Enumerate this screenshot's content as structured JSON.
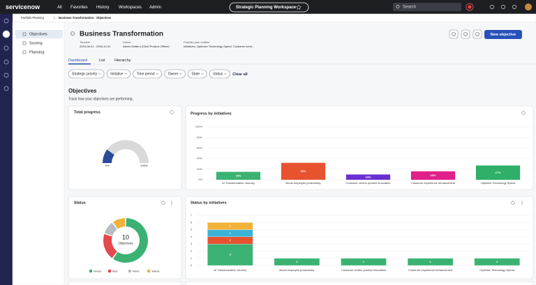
{
  "top_nav": {
    "logo": "servicenow",
    "menu": [
      "All",
      "Favorites",
      "History",
      "Workspaces",
      "Admin"
    ],
    "workspace": "Strategic Planning Workspace",
    "search": "Search"
  },
  "breadcrumb": [
    "Portfolio Planning",
    "Business Transformation - Objectives"
  ],
  "side_nav": [
    "Objectives",
    "Scoring",
    "Planning"
  ],
  "header": {
    "title": "Business Transformation",
    "fields": [
      {
        "label": "Timeline",
        "value": "2024-06-01 - 2026-12-31"
      },
      {
        "label": "Owner",
        "value": "Aileen Mottern (Chief Product Officer)"
      },
      {
        "label": "Portfolio plan entities",
        "value": "Initiatives: Optimize Technology Spend, Customer centr..."
      }
    ],
    "button": "New objective"
  },
  "tabs": [
    "Dashboard",
    "List",
    "Hierarchy"
  ],
  "filters": [
    "Strategic priority",
    "Initiative",
    "Time period",
    "Owner",
    "State",
    "Status"
  ],
  "clear": "Clear all",
  "section": {
    "title": "Objectives",
    "subtitle": "Track how your objectives are performing."
  },
  "chart_data": [
    {
      "type": "gauge",
      "title": "Total progress",
      "value": 20,
      "color": "#2b4a9b",
      "track_color": "#d9d9d9",
      "ticks": [
        {
          "value": 0,
          "label": "0%"
        },
        {
          "value": 100,
          "label": "100%"
        }
      ]
    },
    {
      "type": "bar",
      "title": "Progress by initiatives",
      "categories": [
        "AI Transformation Journey",
        "Boost employee productivity",
        "Customer centric product innovation",
        "Customer experience enhancement",
        "Optimize Technology Spend"
      ],
      "values": [
        15,
        32,
        10,
        16,
        27
      ],
      "value_labels": [
        "15%",
        "32%",
        "10%",
        "16%",
        "27%"
      ],
      "colors": [
        "#3bb273",
        "#e8532f",
        "#6a2fd0",
        "#e0218a",
        "#2faf67"
      ],
      "ylim": [
        0,
        100
      ],
      "yticks": [
        {
          "value": 0,
          "label": "0%"
        },
        {
          "value": 20,
          "label": "20%"
        },
        {
          "value": 40,
          "label": "40%"
        },
        {
          "value": 60,
          "label": "60%"
        },
        {
          "value": 80,
          "label": "80%"
        },
        {
          "value": 100,
          "label": "100%"
        }
      ],
      "grid": true
    },
    {
      "type": "pie",
      "title": "Status",
      "total": 10,
      "center_label": "Objectives",
      "categories": [
        "Green",
        "Red",
        "None",
        "Yellow"
      ],
      "values": [
        6,
        2,
        1,
        1
      ],
      "colors": [
        "#3bb273",
        "#e5484d",
        "#b9bcc2",
        "#f2b23a"
      ]
    },
    {
      "type": "stacked_bar",
      "title": "Status by initiatives",
      "categories": [
        "AI Transformation Journey",
        "Boost employee productivity",
        "Customer centric product innovation",
        "Customer experience enhancement",
        "Optimize Technology Spend"
      ],
      "series": [
        {
          "color": "#3bb273",
          "values": [
            3,
            1,
            1,
            1,
            1
          ]
        },
        {
          "color": "#e8532f",
          "values": [
            1,
            null,
            null,
            null,
            null
          ]
        },
        {
          "color": "#3bb3d6",
          "values": [
            1,
            null,
            null,
            null,
            null
          ]
        },
        {
          "color": "#f2b23a",
          "values": [
            1,
            null,
            null,
            null,
            null
          ]
        }
      ],
      "ylim": [
        0,
        7
      ],
      "yticks": [
        0,
        1,
        2,
        3,
        4,
        5,
        6,
        7
      ],
      "grid": true
    }
  ]
}
